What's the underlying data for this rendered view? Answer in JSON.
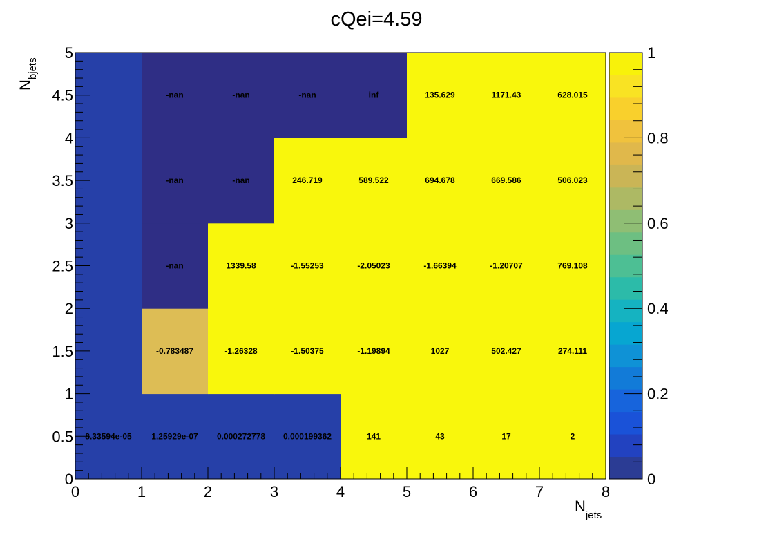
{
  "chart_data": {
    "type": "heatmap",
    "title": "cQei=4.59",
    "xlabel_main": "N",
    "xlabel_sub": "jets",
    "ylabel_main": "N",
    "ylabel_sub": "bjets",
    "xlim": [
      0,
      8
    ],
    "ylim": [
      0,
      5
    ],
    "x_ticks": [
      "0",
      "1",
      "2",
      "3",
      "4",
      "5",
      "6",
      "7",
      "8"
    ],
    "y_ticks": [
      "0",
      "0.5",
      "1",
      "1.5",
      "2",
      "2.5",
      "3",
      "3.5",
      "4",
      "4.5",
      "5"
    ],
    "x_bin_edges": [
      0,
      1,
      2,
      3,
      4,
      5,
      6,
      7,
      8
    ],
    "y_bin_edges": [
      0,
      1,
      2,
      3,
      4,
      5
    ],
    "colorbar": {
      "range": [
        0,
        1
      ],
      "ticks": [
        "0",
        "0.2",
        "0.4",
        "0.6",
        "0.8",
        "1"
      ],
      "palette": [
        "#2b3c94",
        "#2242c0",
        "#1a52d8",
        "#1764dc",
        "#127bd8",
        "#0f92d6",
        "#07a6d1",
        "#15b3c1",
        "#2cbba9",
        "#4dbf94",
        "#6dbf82",
        "#8fbe74",
        "#adb964",
        "#cab556",
        "#e0b84b",
        "#f0c23d",
        "#f9d02c",
        "#f9e323",
        "#f8f20a"
      ]
    },
    "cell_colors": {
      "low": "#2640a8",
      "dark": "#2f2e85",
      "mid": "#ddbd55",
      "high": "#f9f70c"
    },
    "cells": [
      {
        "x": 0,
        "y": 0,
        "label": "8.33594e-05",
        "c": "low"
      },
      {
        "x": 1,
        "y": 0,
        "label": "1.25929e-07",
        "c": "low"
      },
      {
        "x": 2,
        "y": 0,
        "label": "0.000272778",
        "c": "low"
      },
      {
        "x": 3,
        "y": 0,
        "label": "0.000199362",
        "c": "low"
      },
      {
        "x": 4,
        "y": 0,
        "label": "141",
        "c": "high"
      },
      {
        "x": 5,
        "y": 0,
        "label": "43",
        "c": "high"
      },
      {
        "x": 6,
        "y": 0,
        "label": "17",
        "c": "high"
      },
      {
        "x": 7,
        "y": 0,
        "label": "2",
        "c": "high"
      },
      {
        "x": 0,
        "y": 1,
        "label": "",
        "c": "low"
      },
      {
        "x": 1,
        "y": 1,
        "label": "-0.783487",
        "c": "mid"
      },
      {
        "x": 2,
        "y": 1,
        "label": "-1.26328",
        "c": "high"
      },
      {
        "x": 3,
        "y": 1,
        "label": "-1.50375",
        "c": "high"
      },
      {
        "x": 4,
        "y": 1,
        "label": "-1.19894",
        "c": "high"
      },
      {
        "x": 5,
        "y": 1,
        "label": "1027",
        "c": "high"
      },
      {
        "x": 6,
        "y": 1,
        "label": "502.427",
        "c": "high"
      },
      {
        "x": 7,
        "y": 1,
        "label": "274.111",
        "c": "high"
      },
      {
        "x": 0,
        "y": 2,
        "label": "",
        "c": "low"
      },
      {
        "x": 1,
        "y": 2,
        "label": "-nan",
        "c": "dark"
      },
      {
        "x": 2,
        "y": 2,
        "label": "1339.58",
        "c": "high"
      },
      {
        "x": 3,
        "y": 2,
        "label": "-1.55253",
        "c": "high"
      },
      {
        "x": 4,
        "y": 2,
        "label": "-2.05023",
        "c": "high"
      },
      {
        "x": 5,
        "y": 2,
        "label": "-1.66394",
        "c": "high"
      },
      {
        "x": 6,
        "y": 2,
        "label": "-1.20707",
        "c": "high"
      },
      {
        "x": 7,
        "y": 2,
        "label": "769.108",
        "c": "high"
      },
      {
        "x": 0,
        "y": 3,
        "label": "",
        "c": "low"
      },
      {
        "x": 1,
        "y": 3,
        "label": "-nan",
        "c": "dark"
      },
      {
        "x": 2,
        "y": 3,
        "label": "-nan",
        "c": "dark"
      },
      {
        "x": 3,
        "y": 3,
        "label": "246.719",
        "c": "high"
      },
      {
        "x": 4,
        "y": 3,
        "label": "589.522",
        "c": "high"
      },
      {
        "x": 5,
        "y": 3,
        "label": "694.678",
        "c": "high"
      },
      {
        "x": 6,
        "y": 3,
        "label": "669.586",
        "c": "high"
      },
      {
        "x": 7,
        "y": 3,
        "label": "506.023",
        "c": "high"
      },
      {
        "x": 0,
        "y": 4,
        "label": "",
        "c": "low"
      },
      {
        "x": 1,
        "y": 4,
        "label": "-nan",
        "c": "dark"
      },
      {
        "x": 2,
        "y": 4,
        "label": "-nan",
        "c": "dark"
      },
      {
        "x": 3,
        "y": 4,
        "label": "-nan",
        "c": "dark"
      },
      {
        "x": 4,
        "y": 4,
        "label": "inf",
        "c": "dark"
      },
      {
        "x": 5,
        "y": 4,
        "label": "135.629",
        "c": "high"
      },
      {
        "x": 6,
        "y": 4,
        "label": "1171.43",
        "c": "high"
      },
      {
        "x": 7,
        "y": 4,
        "label": "628.015",
        "c": "high"
      }
    ]
  }
}
